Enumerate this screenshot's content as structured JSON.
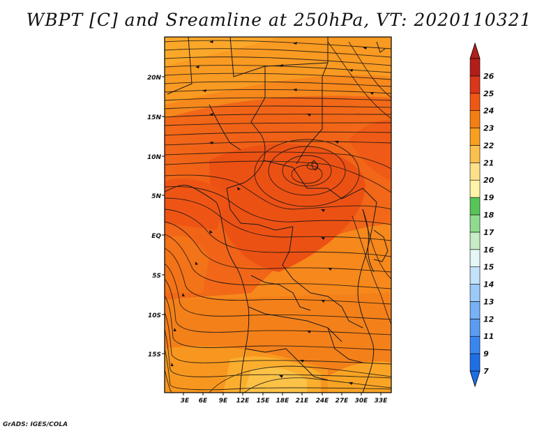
{
  "title": "WBPT [C] and Sreamline at 250hPa, VT: 2020110321",
  "credit": "GrADS: IGES/COLA",
  "map": {
    "lon_labels": [
      "3E",
      "6E",
      "9E",
      "12E",
      "15E",
      "18E",
      "21E",
      "24E",
      "27E",
      "30E",
      "33E"
    ],
    "lat_labels": [
      "20N",
      "15N",
      "10N",
      "5N",
      "EQ",
      "5S",
      "10S",
      "15S"
    ]
  },
  "colorbar": {
    "labels": [
      "7",
      "9",
      "11",
      "12",
      "13",
      "14",
      "15",
      "16",
      "17",
      "18",
      "19",
      "20",
      "21",
      "22",
      "23",
      "24",
      "25",
      "26"
    ],
    "colors": [
      "#1e6fe6",
      "#3a86f0",
      "#5a9cf2",
      "#76b2f5",
      "#9ccaf8",
      "#c3e2fb",
      "#e4f6f6",
      "#c6edc6",
      "#8fdc8f",
      "#58c558",
      "#fff4a8",
      "#fde08a",
      "#fcc04f",
      "#f9a020",
      "#f57e12",
      "#ef5814",
      "#d9361a",
      "#b41e1a"
    ]
  }
}
